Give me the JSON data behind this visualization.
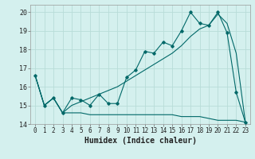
{
  "xlabel": "Humidex (Indice chaleur)",
  "background_color": "#d4f0ee",
  "grid_color": "#b8dcd8",
  "line_color": "#006868",
  "xlim": [
    -0.5,
    23.5
  ],
  "ylim": [
    14.0,
    20.4
  ],
  "yticks": [
    14,
    15,
    16,
    17,
    18,
    19,
    20
  ],
  "xticks": [
    0,
    1,
    2,
    3,
    4,
    5,
    6,
    7,
    8,
    9,
    10,
    11,
    12,
    13,
    14,
    15,
    16,
    17,
    18,
    19,
    20,
    21,
    22,
    23
  ],
  "series1_x": [
    0,
    1,
    2,
    3,
    4,
    5,
    6,
    7,
    8,
    9,
    10,
    11,
    12,
    13,
    14,
    15,
    16,
    17,
    18,
    19,
    20,
    21,
    22,
    23
  ],
  "series1_y": [
    16.6,
    15.0,
    15.4,
    14.6,
    15.4,
    15.3,
    15.0,
    15.6,
    15.1,
    15.1,
    16.5,
    16.9,
    17.9,
    17.8,
    18.4,
    18.2,
    19.0,
    20.0,
    19.4,
    19.3,
    20.0,
    18.9,
    15.7,
    14.1
  ],
  "series2_x": [
    0,
    1,
    2,
    3,
    4,
    5,
    6,
    7,
    8,
    9,
    10,
    11,
    12,
    13,
    14,
    15,
    16,
    17,
    18,
    19,
    20,
    21,
    22,
    23
  ],
  "series2_y": [
    16.6,
    15.0,
    15.4,
    14.6,
    14.6,
    14.6,
    14.5,
    14.5,
    14.5,
    14.5,
    14.5,
    14.5,
    14.5,
    14.5,
    14.5,
    14.5,
    14.4,
    14.4,
    14.4,
    14.3,
    14.2,
    14.2,
    14.2,
    14.1
  ],
  "series3_x": [
    0,
    1,
    2,
    3,
    4,
    5,
    6,
    7,
    8,
    9,
    10,
    11,
    12,
    13,
    14,
    15,
    16,
    17,
    18,
    19,
    20,
    21,
    22,
    23
  ],
  "series3_y": [
    16.6,
    15.0,
    15.4,
    14.6,
    15.0,
    15.2,
    15.4,
    15.6,
    15.8,
    16.0,
    16.3,
    16.6,
    16.9,
    17.2,
    17.5,
    17.8,
    18.2,
    18.7,
    19.1,
    19.3,
    19.9,
    19.4,
    17.8,
    14.1
  ],
  "xlabel_fontsize": 7,
  "tick_fontsize": 5.5,
  "ytick_fontsize": 6
}
